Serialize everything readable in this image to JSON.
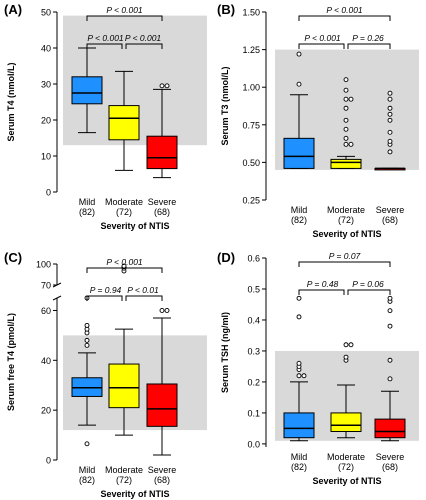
{
  "chart_data": [
    {
      "type": "boxplot",
      "panel_label": "(A)",
      "ylabel": "Serum T4 (nmol/L)",
      "xlabel": "Severity of NTIS",
      "ylim": [
        0,
        50
      ],
      "yticks": [
        "0",
        "10",
        "20",
        "30",
        "40",
        "50"
      ],
      "reference_range": [
        13,
        49
      ],
      "categories": [
        "Mild",
        "Moderate",
        "Severe"
      ],
      "counts": [
        "(82)",
        "(72)",
        "(68)"
      ],
      "colors": [
        "#1e90ff",
        "#ffff00",
        "#ff0000"
      ],
      "boxes": [
        {
          "whisker_low": 16.5,
          "q1": 24.5,
          "median": 27.5,
          "q3": 32,
          "whisker_high": 40,
          "outliers": []
        },
        {
          "whisker_low": 6,
          "q1": 14.5,
          "median": 20.5,
          "q3": 24,
          "whisker_high": 33.5,
          "outliers": []
        },
        {
          "whisker_low": 4,
          "q1": 6.5,
          "median": 9.5,
          "q3": 15.5,
          "whisker_high": 28.5,
          "outliers": [
            29.5,
            29.5
          ]
        }
      ],
      "comparisons": [
        {
          "text": "P < 0.001",
          "from": 0,
          "to": 1,
          "level": 1
        },
        {
          "text": "P < 0.001",
          "from": 1,
          "to": 2,
          "level": 1
        },
        {
          "text": "P < 0.001",
          "from": 0,
          "to": 2,
          "level": 2
        }
      ]
    },
    {
      "type": "boxplot",
      "panel_label": "(B)",
      "ylabel": "Serum T3 (nmol/L)",
      "xlabel": "Severity of NTIS",
      "ylim": [
        0.25,
        1.5
      ],
      "yticks": [
        "0.25",
        "0.50",
        "0.75",
        "1.00",
        "1.25",
        "1.50"
      ],
      "reference_range": [
        0.45,
        1.25
      ],
      "categories": [
        "Mild",
        "Moderate",
        "Severe"
      ],
      "counts": [
        "(82)",
        "(72)",
        "(68)"
      ],
      "colors": [
        "#1e90ff",
        "#ffff00",
        "#ff0000"
      ],
      "boxes": [
        {
          "whisker_low": 0.46,
          "q1": 0.46,
          "median": 0.54,
          "q3": 0.66,
          "whisker_high": 0.95,
          "outliers": [
            1.02,
            1.22
          ]
        },
        {
          "whisker_low": 0.46,
          "q1": 0.46,
          "median": 0.5,
          "q3": 0.52,
          "whisker_high": 0.54,
          "outliers": [
            0.62,
            0.62,
            0.66,
            0.72,
            0.78,
            0.86,
            0.92,
            0.92,
            0.98,
            1.05
          ]
        },
        {
          "whisker_low": 0.46,
          "q1": 0.46,
          "median": 0.46,
          "q3": 0.46,
          "whisker_high": 0.46,
          "outliers": [
            0.57,
            0.62,
            0.64,
            0.7,
            0.78,
            0.82,
            0.86,
            0.92,
            0.96
          ]
        }
      ],
      "comparisons": [
        {
          "text": "P < 0.001",
          "from": 0,
          "to": 1,
          "level": 1
        },
        {
          "text": "P = 0.26",
          "from": 1,
          "to": 2,
          "level": 1
        },
        {
          "text": "P < 0.001",
          "from": 0,
          "to": 2,
          "level": 2
        }
      ]
    },
    {
      "type": "boxplot",
      "panel_label": "(C)",
      "ylabel": "Serum free T4 (pmol/L)",
      "xlabel": "Severity of NTIS",
      "ylim": [
        0,
        100
      ],
      "axis_break": {
        "lower_max": 65,
        "upper_min": 70,
        "upper_max": 100
      },
      "yticks": [
        "0",
        "20",
        "40",
        "60",
        "70",
        "100"
      ],
      "reference_range": [
        12,
        50
      ],
      "categories": [
        "Mild",
        "Moderate",
        "Severe"
      ],
      "counts": [
        "(82)",
        "(72)",
        "(68)"
      ],
      "colors": [
        "#1e90ff",
        "#ffff00",
        "#ff0000"
      ],
      "boxes": [
        {
          "whisker_low": 14,
          "q1": 25.5,
          "median": 29,
          "q3": 33,
          "whisker_high": 43,
          "outliers": [
            6.5,
            46,
            48,
            51,
            52.5,
            54,
            69
          ]
        },
        {
          "whisker_low": 10,
          "q1": 21,
          "median": 29,
          "q3": 38.5,
          "whisker_high": 52.5,
          "outliers": [
            90,
            94,
            96,
            97
          ]
        },
        {
          "whisker_low": 2,
          "q1": 13.5,
          "median": 20.5,
          "q3": 30.5,
          "whisker_high": 57,
          "outliers": [
            60,
            60
          ]
        }
      ],
      "comparisons": [
        {
          "text": "P = 0.94",
          "from": 0,
          "to": 1,
          "level": 1
        },
        {
          "text": "P < 0.01",
          "from": 1,
          "to": 2,
          "level": 1
        },
        {
          "text": "P < 0.001",
          "from": 0,
          "to": 2,
          "level": 2
        }
      ]
    },
    {
      "type": "boxplot",
      "panel_label": "(D)",
      "ylabel": "Serum TSH (ng/ml)",
      "xlabel": "Severity of NTIS",
      "ylim": [
        -0.01,
        0.6
      ],
      "yticks": [
        "0.0",
        "0.1",
        "0.2",
        "0.3",
        "0.4",
        "0.5",
        "0.6"
      ],
      "reference_range": [
        0.01,
        0.3
      ],
      "categories": [
        "Mild",
        "Moderate",
        "Severe"
      ],
      "counts": [
        "(82)",
        "(72)",
        "(68)"
      ],
      "colors": [
        "#1e90ff",
        "#ffff00",
        "#ff0000"
      ],
      "boxes": [
        {
          "whisker_low": 0.01,
          "q1": 0.02,
          "median": 0.05,
          "q3": 0.1,
          "whisker_high": 0.2,
          "outliers": [
            0.22,
            0.22,
            0.24,
            0.25,
            0.26,
            0.41,
            0.47
          ]
        },
        {
          "whisker_low": 0.02,
          "q1": 0.04,
          "median": 0.06,
          "q3": 0.1,
          "whisker_high": 0.19,
          "outliers": [
            0.27,
            0.28,
            0.32,
            0.32
          ]
        },
        {
          "whisker_low": 0.01,
          "q1": 0.02,
          "median": 0.04,
          "q3": 0.08,
          "whisker_high": 0.17,
          "outliers": [
            0.21,
            0.27,
            0.38,
            0.43,
            0.46,
            0.47
          ]
        }
      ],
      "comparisons": [
        {
          "text": "P = 0.48",
          "from": 0,
          "to": 1,
          "level": 1
        },
        {
          "text": "P = 0.06",
          "from": 1,
          "to": 2,
          "level": 1
        },
        {
          "text": "P = 0.07",
          "from": 0,
          "to": 2,
          "level": 2
        }
      ]
    }
  ]
}
